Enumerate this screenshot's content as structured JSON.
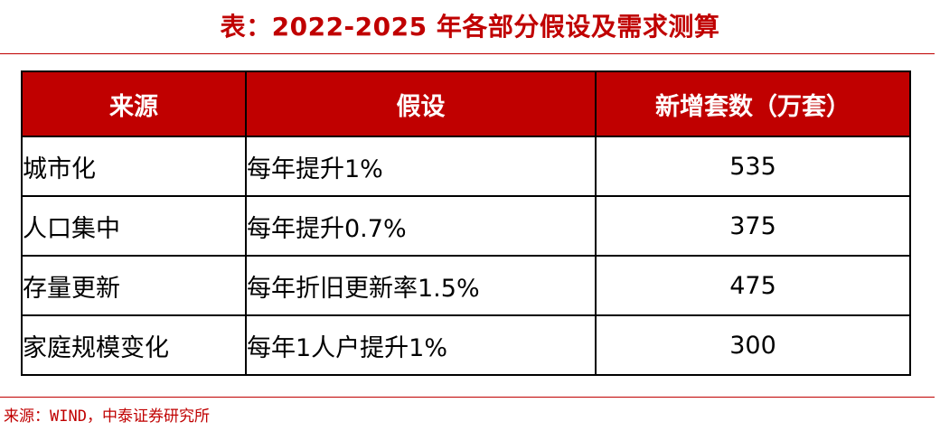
{
  "title": "表：2022-2025 年各部分假设及需求测算",
  "table": {
    "headers": [
      "来源",
      "假设",
      "新增套数（万套）"
    ],
    "rows": [
      {
        "source": "城市化",
        "assumption": "每年提升1%",
        "value": "535"
      },
      {
        "source": "人口集中",
        "assumption": "每年提升0.7%",
        "value": "375"
      },
      {
        "source": "存量更新",
        "assumption": "每年折旧更新率1.5%",
        "value": "475"
      },
      {
        "source": "家庭规模变化",
        "assumption": "每年1人户提升1%",
        "value": "300"
      }
    ]
  },
  "footnote": "来源：WIND，中泰证券研究所",
  "colors": {
    "accent": "#c00000",
    "header_text": "#ffffff",
    "border": "#000000"
  }
}
